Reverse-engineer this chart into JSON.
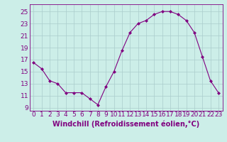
{
  "x": [
    0,
    1,
    2,
    3,
    4,
    5,
    6,
    7,
    8,
    9,
    10,
    11,
    12,
    13,
    14,
    15,
    16,
    17,
    18,
    19,
    20,
    21,
    22,
    23
  ],
  "y": [
    16.5,
    15.5,
    13.5,
    13.0,
    11.5,
    11.5,
    11.5,
    10.5,
    9.5,
    12.5,
    15.0,
    18.5,
    21.5,
    23.0,
    23.5,
    24.5,
    25.0,
    25.0,
    24.5,
    23.5,
    21.5,
    17.5,
    13.5,
    11.5
  ],
  "line_color": "#800080",
  "marker": "D",
  "marker_size": 2,
  "xlabel": "Windchill (Refroidissement éolien,°C)",
  "xlabel_fontsize": 7,
  "yticks": [
    9,
    11,
    13,
    15,
    17,
    19,
    21,
    23,
    25
  ],
  "xticks": [
    0,
    1,
    2,
    3,
    4,
    5,
    6,
    7,
    8,
    9,
    10,
    11,
    12,
    13,
    14,
    15,
    16,
    17,
    18,
    19,
    20,
    21,
    22,
    23
  ],
  "ylim": [
    8.5,
    26.2
  ],
  "xlim": [
    -0.5,
    23.5
  ],
  "bg_color": "#cceee8",
  "grid_color": "#aacccc",
  "tick_fontsize": 6.5,
  "spine_color": "#800080"
}
